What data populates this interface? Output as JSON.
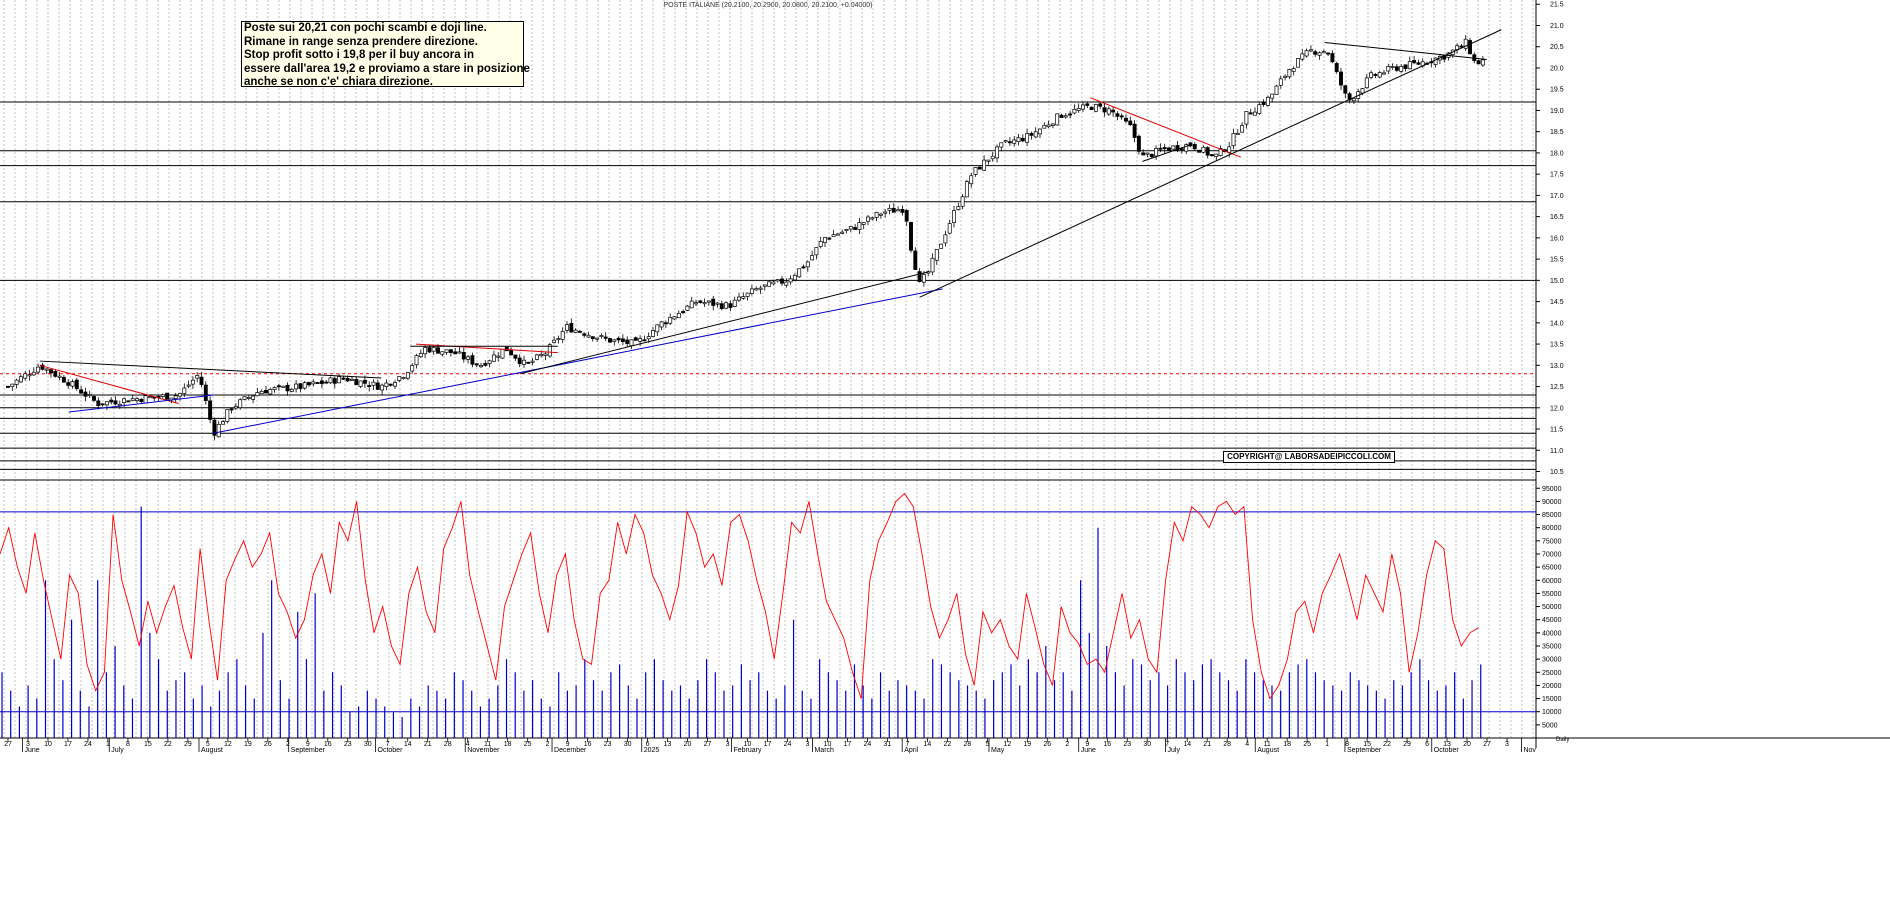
{
  "header": {
    "title": "POSTE ITALIANE (20.2100, 20.2900, 20.0800, 20.2100, +0.04000)"
  },
  "annotation": {
    "lines": [
      "Poste sui 20,21 con pochi scambi e doji line.",
      "Rimane in range senza prendere direzione.",
      "Stop profit sotto i 19,8 per il buy ancora in",
      "essere dall'area 19,2 e proviamo a stare in posizione",
      "anche se non c'e' chiara direzione."
    ]
  },
  "copyright": "COPYRIGHT@ LABORSADEIPICCOLI.COM",
  "colors": {
    "grid": "#9a9a9a",
    "candle": "#000000",
    "trend_red": "#e00000",
    "trend_blue": "#0000cc",
    "oscillator": "#ff0000",
    "volume": "#0000cc",
    "dashed_level": "#ff0000"
  },
  "chart_data": [
    {
      "type": "candlestick",
      "title": "POSTE ITALIANE",
      "ylim": [
        10.3,
        21.6
      ],
      "y_ticks": [
        "10.5",
        "11.0",
        "11.5",
        "12.0",
        "12.5",
        "13.0",
        "13.5",
        "14.0",
        "14.5",
        "15.0",
        "15.5",
        "16.0",
        "16.5",
        "17.0",
        "17.5",
        "18.0",
        "18.5",
        "19.0",
        "19.5",
        "20.0",
        "20.5",
        "21.0",
        "21.5"
      ],
      "last": {
        "open": 20.21,
        "high": 20.29,
        "low": 20.08,
        "close": 20.21,
        "change": 0.04
      },
      "path": [
        [
          "2024-05-27",
          12.5
        ],
        [
          "2024-06-07",
          13.0
        ],
        [
          "2024-06-17",
          12.6
        ],
        [
          "2024-06-27",
          12.1
        ],
        [
          "2024-07-08",
          12.2
        ],
        [
          "2024-07-25",
          12.3
        ],
        [
          "2024-08-01",
          12.8
        ],
        [
          "2024-08-06",
          11.4
        ],
        [
          "2024-08-12",
          12.0
        ],
        [
          "2024-08-22",
          12.4
        ],
        [
          "2024-09-06",
          12.5
        ],
        [
          "2024-09-20",
          12.7
        ],
        [
          "2024-10-03",
          12.5
        ],
        [
          "2024-10-11",
          12.8
        ],
        [
          "2024-10-18",
          13.4
        ],
        [
          "2024-10-28",
          13.3
        ],
        [
          "2024-11-06",
          13.0
        ],
        [
          "2024-11-15",
          13.4
        ],
        [
          "2024-11-22",
          13.0
        ],
        [
          "2024-11-29",
          13.3
        ],
        [
          "2024-12-06",
          13.9
        ],
        [
          "2024-12-20",
          13.6
        ],
        [
          "2024-12-30",
          13.5
        ],
        [
          "2025-01-08",
          14.0
        ],
        [
          "2025-01-20",
          14.5
        ],
        [
          "2025-01-31",
          14.4
        ],
        [
          "2025-02-10",
          14.8
        ],
        [
          "2025-02-20",
          15.0
        ],
        [
          "2025-02-27",
          15.4
        ],
        [
          "2025-03-05",
          16.0
        ],
        [
          "2025-03-14",
          16.2
        ],
        [
          "2025-03-25",
          16.6
        ],
        [
          "2025-04-02",
          16.7
        ],
        [
          "2025-04-04",
          15.8
        ],
        [
          "2025-04-07",
          14.9
        ],
        [
          "2025-04-10",
          15.2
        ],
        [
          "2025-04-17",
          16.3
        ],
        [
          "2025-04-25",
          17.5
        ],
        [
          "2025-05-06",
          18.2
        ],
        [
          "2025-05-15",
          18.4
        ],
        [
          "2025-05-26",
          18.9
        ],
        [
          "2025-06-05",
          19.1
        ],
        [
          "2025-06-12",
          19.0
        ],
        [
          "2025-06-19",
          18.6
        ],
        [
          "2025-06-23",
          17.9
        ],
        [
          "2025-07-01",
          18.1
        ],
        [
          "2025-07-10",
          18.2
        ],
        [
          "2025-07-18",
          17.9
        ],
        [
          "2025-07-23",
          18.2
        ],
        [
          "2025-07-29",
          18.9
        ],
        [
          "2025-08-06",
          19.3
        ],
        [
          "2025-08-13",
          20.0
        ],
        [
          "2025-08-20",
          20.4
        ],
        [
          "2025-08-26",
          20.4
        ],
        [
          "2025-09-02",
          19.2
        ],
        [
          "2025-09-10",
          19.8
        ],
        [
          "2025-09-18",
          20.0
        ],
        [
          "2025-09-26",
          20.1
        ],
        [
          "2025-10-06",
          20.3
        ],
        [
          "2025-10-13",
          20.6
        ],
        [
          "2025-10-16",
          20.1
        ],
        [
          "2025-10-20",
          20.2
        ]
      ],
      "horizontal_levels": [
        10.55,
        10.75,
        11.05,
        11.4,
        11.75,
        12.0,
        12.3,
        15.0,
        16.85,
        17.7,
        18.05,
        19.2
      ],
      "dashed_levels": [
        12.8
      ],
      "trendlines": [
        {
          "color": "red",
          "points": [
            [
              "2024-06-07",
              13.0
            ],
            [
              "2024-07-25",
              12.1
            ]
          ]
        },
        {
          "color": "black",
          "points": [
            [
              "2024-06-07",
              13.1
            ],
            [
              "2024-10-03",
              12.7
            ]
          ]
        },
        {
          "color": "blue",
          "points": [
            [
              "2024-06-17",
              11.9
            ],
            [
              "2024-08-06",
              12.3
            ]
          ]
        },
        {
          "color": "blue",
          "points": [
            [
              "2024-08-06",
              11.4
            ],
            [
              "2025-04-15",
              14.8
            ]
          ]
        },
        {
          "color": "black",
          "points": [
            [
              "2024-11-20",
              12.8
            ],
            [
              "2025-04-10",
              15.2
            ]
          ]
        },
        {
          "color": "red",
          "points": [
            [
              "2024-10-15",
              13.5
            ],
            [
              "2024-12-03",
              13.3
            ]
          ]
        },
        {
          "color": "black",
          "points": [
            [
              "2024-10-13",
              13.45
            ],
            [
              "2024-12-03",
              13.45
            ]
          ]
        },
        {
          "color": "red",
          "points": [
            [
              "2025-06-05",
              19.3
            ],
            [
              "2025-07-27",
              17.9
            ]
          ]
        },
        {
          "color": "black",
          "points": [
            [
              "2025-06-23",
              17.8
            ],
            [
              "2025-07-10",
              18.2
            ]
          ]
        },
        {
          "color": "black",
          "points": [
            [
              "2025-04-07",
              14.6
            ],
            [
              "2025-10-25",
              20.9
            ]
          ]
        },
        {
          "color": "black",
          "points": [
            [
              "2025-08-25",
              20.6
            ],
            [
              "2025-10-20",
              20.2
            ]
          ]
        }
      ],
      "xlabel": "",
      "ylabel": ""
    },
    {
      "type": "line",
      "series": [
        {
          "values": [
            70,
            80,
            65,
            55,
            78,
            60,
            45,
            30,
            62,
            55,
            28,
            18,
            25,
            85,
            60,
            48,
            35,
            52,
            40,
            50,
            58,
            42,
            30,
            72,
            45,
            22,
            60,
            68,
            75,
            65,
            70,
            78,
            55,
            48,
            38,
            45,
            62,
            70,
            55,
            82,
            75,
            90,
            60,
            40,
            50,
            35,
            28,
            55,
            65,
            48,
            40,
            72,
            80,
            90,
            62,
            48,
            35,
            22,
            50,
            60,
            70,
            78,
            55,
            40,
            62,
            70,
            45,
            30,
            28,
            55,
            60,
            82,
            70,
            85,
            78,
            62,
            55,
            45,
            58,
            86,
            78,
            65,
            70,
            58,
            82,
            85,
            75,
            60,
            48,
            30,
            55,
            82,
            78,
            90,
            70,
            52,
            45,
            38,
            25,
            15,
            60,
            75,
            82,
            90,
            93,
            88,
            70,
            50,
            38,
            45,
            55,
            32,
            20,
            48,
            40,
            45,
            35,
            30,
            55,
            42,
            28,
            20,
            50,
            40,
            36,
            28,
            30,
            25,
            40,
            55,
            38,
            45,
            30,
            25,
            60,
            82,
            75,
            88,
            85,
            80,
            88,
            90,
            85,
            88,
            45,
            25,
            15,
            20,
            30,
            48,
            52,
            40,
            55,
            62,
            70,
            58,
            45,
            62,
            55,
            48,
            70,
            55,
            25,
            40,
            62,
            75,
            72,
            45,
            35,
            40,
            42
          ]
        }
      ],
      "ylim": [
        0,
        97000
      ],
      "y_ticks": [
        "5000",
        "10000",
        "15000",
        "20000",
        "25000",
        "30000",
        "35000",
        "40000",
        "45000",
        "50000",
        "55000",
        "60000",
        "65000",
        "70000",
        "75000",
        "80000",
        "85000",
        "90000",
        "95000"
      ],
      "horizontal_levels": [
        86000,
        10000
      ],
      "bottom_axis_label": "Daily"
    },
    {
      "type": "bar",
      "name": "volume",
      "values_note": "daily volume bars in thousands",
      "values": [
        25,
        18,
        12,
        20,
        15,
        60,
        30,
        22,
        45,
        18,
        12,
        60,
        25,
        35,
        20,
        15,
        88,
        40,
        30,
        18,
        22,
        25,
        15,
        20,
        12,
        18,
        25,
        30,
        20,
        15,
        40,
        60,
        22,
        15,
        48,
        30,
        55,
        18,
        25,
        20,
        10,
        12,
        18,
        15,
        12,
        10,
        8,
        15,
        12,
        20,
        18,
        15,
        25,
        22,
        18,
        12,
        15,
        20,
        30,
        25,
        18,
        22,
        15,
        12,
        25,
        18,
        20,
        30,
        22,
        18,
        25,
        28,
        20,
        15,
        25,
        30,
        22,
        18,
        20,
        15,
        22,
        30,
        25,
        18,
        20,
        28,
        22,
        25,
        18,
        15,
        20,
        45,
        18,
        15,
        30,
        25,
        22,
        18,
        28,
        20,
        15,
        25,
        18,
        22,
        20,
        18,
        15,
        30,
        28,
        25,
        22,
        20,
        18,
        15,
        22,
        25,
        28,
        20,
        30,
        25,
        35,
        22,
        25,
        18,
        60,
        40,
        80,
        35,
        25,
        20,
        30,
        28,
        22,
        25,
        20,
        30,
        25,
        22,
        28,
        30,
        25,
        22,
        18,
        30,
        25,
        22,
        20,
        18,
        25,
        28,
        30,
        25,
        22,
        20,
        18,
        25,
        22,
        20,
        18,
        15,
        22,
        20,
        25,
        30,
        22,
        18,
        20,
        25,
        15,
        22,
        28
      ]
    }
  ],
  "x_axis": {
    "day_ticks": [
      "27",
      "3",
      "10",
      "17",
      "24",
      "1",
      "8",
      "15",
      "22",
      "29",
      "5",
      "12",
      "19",
      "26",
      "2",
      "9",
      "16",
      "23",
      "30",
      "7",
      "14",
      "21",
      "28",
      "4",
      "11",
      "18",
      "25",
      "2",
      "9",
      "16",
      "23",
      "30",
      "6",
      "13",
      "20",
      "27",
      "3",
      "10",
      "17",
      "24",
      "3",
      "10",
      "17",
      "24",
      "31",
      "7",
      "14",
      "22",
      "28",
      "5",
      "12",
      "19",
      "26",
      "2",
      "9",
      "16",
      "23",
      "30",
      "7",
      "14",
      "21",
      "28",
      "4",
      "11",
      "18",
      "25",
      "1",
      "8",
      "15",
      "22",
      "29",
      "6",
      "13",
      "20",
      "27",
      "3"
    ],
    "months": [
      "June",
      "July",
      "August",
      "September",
      "October",
      "November",
      "December",
      "2025",
      "February",
      "March",
      "April",
      "May",
      "June",
      "July",
      "August",
      "September",
      "October",
      "Nov"
    ]
  }
}
